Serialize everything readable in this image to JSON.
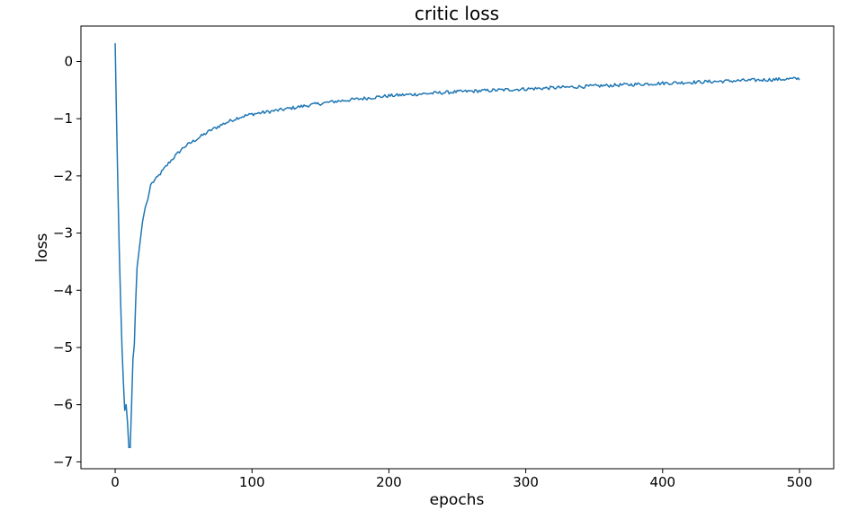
{
  "chart_data": {
    "type": "line",
    "title": "critic loss",
    "xlabel": "epochs",
    "ylabel": "loss",
    "xlim": [
      -25,
      525
    ],
    "ylim": [
      -7.12,
      0.62
    ],
    "xticks": [
      0,
      100,
      200,
      300,
      400,
      500
    ],
    "yticks": [
      0,
      -1,
      -2,
      -3,
      -4,
      -5,
      -6,
      -7
    ],
    "grid": false,
    "legend": "none",
    "series": [
      {
        "color": "#1f77b4",
        "anchors": [
          [
            0,
            0.32
          ],
          [
            1,
            -1.0
          ],
          [
            2,
            -2.2
          ],
          [
            3,
            -3.3
          ],
          [
            4,
            -4.2
          ],
          [
            5,
            -5.0
          ],
          [
            6,
            -5.6
          ],
          [
            7,
            -6.1
          ],
          [
            8,
            -6.0
          ],
          [
            9,
            -6.3
          ],
          [
            10,
            -6.75
          ],
          [
            11,
            -6.75
          ],
          [
            12,
            -6.0
          ],
          [
            13,
            -5.2
          ],
          [
            14,
            -4.95
          ],
          [
            15,
            -4.2
          ],
          [
            16,
            -3.6
          ],
          [
            18,
            -3.2
          ],
          [
            20,
            -2.8
          ],
          [
            22,
            -2.55
          ],
          [
            24,
            -2.4
          ],
          [
            26,
            -2.15
          ],
          [
            30,
            -2.05
          ],
          [
            35,
            -1.9
          ],
          [
            40,
            -1.75
          ],
          [
            50,
            -1.5
          ],
          [
            60,
            -1.35
          ],
          [
            70,
            -1.2
          ],
          [
            80,
            -1.08
          ],
          [
            90,
            -0.98
          ],
          [
            100,
            -0.92
          ],
          [
            120,
            -0.85
          ],
          [
            140,
            -0.77
          ],
          [
            160,
            -0.7
          ],
          [
            180,
            -0.65
          ],
          [
            200,
            -0.6
          ],
          [
            250,
            -0.53
          ],
          [
            300,
            -0.48
          ],
          [
            350,
            -0.43
          ],
          [
            400,
            -0.38
          ],
          [
            450,
            -0.34
          ],
          [
            500,
            -0.3
          ]
        ],
        "noise": 0.03,
        "n_points": 501
      }
    ]
  }
}
